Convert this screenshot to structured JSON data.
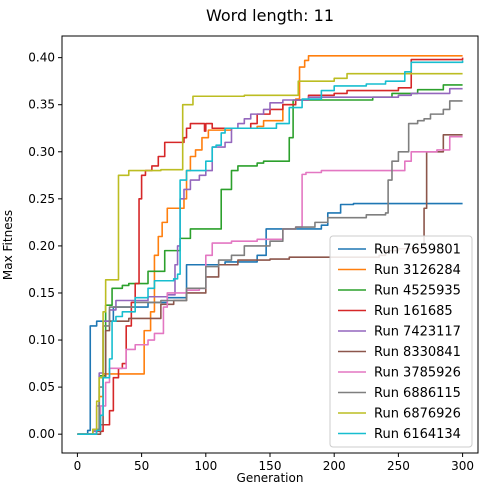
{
  "chart_data": {
    "type": "line",
    "title": "Word length: 11",
    "xlabel": "Generation",
    "ylabel": "Max Fitness",
    "xlim": [
      -12,
      312
    ],
    "ylim": [
      -0.02,
      0.423
    ],
    "xticks": [
      0,
      50,
      100,
      150,
      200,
      250,
      300
    ],
    "yticks": [
      0.0,
      0.05,
      0.1,
      0.15,
      0.2,
      0.25,
      0.3,
      0.35,
      0.4
    ],
    "grid": false,
    "legend_position": "lower-right",
    "series": [
      {
        "name": "Run 7659801",
        "color": "#1f77b4",
        "step": [
          [
            0,
            0
          ],
          [
            8,
            0.004
          ],
          [
            10,
            0.115
          ],
          [
            15,
            0.12
          ],
          [
            28,
            0.135
          ],
          [
            55,
            0.14
          ],
          [
            70,
            0.145
          ],
          [
            85,
            0.18
          ],
          [
            115,
            0.183
          ],
          [
            140,
            0.19
          ],
          [
            147,
            0.218
          ],
          [
            190,
            0.222
          ],
          [
            195,
            0.235
          ],
          [
            205,
            0.244
          ],
          [
            215,
            0.245
          ],
          [
            300,
            0.245
          ]
        ]
      },
      {
        "name": "Run 3126284",
        "color": "#ff7f0e",
        "step": [
          [
            0,
            0
          ],
          [
            12,
            0.005
          ],
          [
            17,
            0.04
          ],
          [
            20,
            0.064
          ],
          [
            50,
            0.064
          ],
          [
            52,
            0.11
          ],
          [
            57,
            0.13
          ],
          [
            60,
            0.19
          ],
          [
            63,
            0.21
          ],
          [
            66,
            0.225
          ],
          [
            70,
            0.24
          ],
          [
            83,
            0.25
          ],
          [
            85,
            0.28
          ],
          [
            88,
            0.295
          ],
          [
            92,
            0.302
          ],
          [
            97,
            0.315
          ],
          [
            102,
            0.323
          ],
          [
            120,
            0.325
          ],
          [
            140,
            0.327
          ],
          [
            145,
            0.333
          ],
          [
            160,
            0.35
          ],
          [
            170,
            0.356
          ],
          [
            173,
            0.39
          ],
          [
            177,
            0.397
          ],
          [
            180,
            0.402
          ],
          [
            250,
            0.402
          ],
          [
            300,
            0.402
          ]
        ]
      },
      {
        "name": "Run 4525935",
        "color": "#2ca02c",
        "step": [
          [
            0,
            0
          ],
          [
            15,
            0.005
          ],
          [
            17,
            0.062
          ],
          [
            22,
            0.137
          ],
          [
            27,
            0.155
          ],
          [
            35,
            0.158
          ],
          [
            40,
            0.16
          ],
          [
            55,
            0.173
          ],
          [
            68,
            0.195
          ],
          [
            80,
            0.208
          ],
          [
            88,
            0.218
          ],
          [
            110,
            0.218
          ],
          [
            112,
            0.26
          ],
          [
            120,
            0.28
          ],
          [
            125,
            0.285
          ],
          [
            140,
            0.288
          ],
          [
            145,
            0.29
          ],
          [
            163,
            0.29
          ],
          [
            165,
            0.315
          ],
          [
            168,
            0.355
          ],
          [
            230,
            0.358
          ],
          [
            245,
            0.362
          ],
          [
            265,
            0.366
          ],
          [
            285,
            0.371
          ],
          [
            300,
            0.371
          ]
        ]
      },
      {
        "name": "Run 161685",
        "color": "#d62728",
        "step": [
          [
            0,
            0
          ],
          [
            15,
            0.003
          ],
          [
            20,
            0.01
          ],
          [
            25,
            0.025
          ],
          [
            28,
            0.06
          ],
          [
            32,
            0.07
          ],
          [
            35,
            0.075
          ],
          [
            38,
            0.115
          ],
          [
            42,
            0.14
          ],
          [
            45,
            0.16
          ],
          [
            48,
            0.25
          ],
          [
            50,
            0.275
          ],
          [
            53,
            0.28
          ],
          [
            58,
            0.285
          ],
          [
            63,
            0.295
          ],
          [
            68,
            0.31
          ],
          [
            80,
            0.31
          ],
          [
            83,
            0.315
          ],
          [
            85,
            0.325
          ],
          [
            88,
            0.33
          ],
          [
            95,
            0.33
          ],
          [
            99,
            0.322
          ],
          [
            100,
            0.33
          ],
          [
            105,
            0.325
          ],
          [
            120,
            0.325
          ],
          [
            135,
            0.33
          ],
          [
            140,
            0.34
          ],
          [
            150,
            0.345
          ],
          [
            160,
            0.35
          ],
          [
            170,
            0.355
          ],
          [
            180,
            0.36
          ],
          [
            200,
            0.362
          ],
          [
            210,
            0.365
          ],
          [
            250,
            0.368
          ],
          [
            260,
            0.398
          ],
          [
            300,
            0.4
          ]
        ]
      },
      {
        "name": "Run 7423117",
        "color": "#9467bd",
        "step": [
          [
            0,
            0
          ],
          [
            12,
            0.003
          ],
          [
            15,
            0.03
          ],
          [
            17,
            0.065
          ],
          [
            20,
            0.12
          ],
          [
            25,
            0.132
          ],
          [
            30,
            0.142
          ],
          [
            40,
            0.142
          ],
          [
            55,
            0.146
          ],
          [
            70,
            0.148
          ],
          [
            76,
            0.18
          ],
          [
            78,
            0.2
          ],
          [
            80,
            0.25
          ],
          [
            83,
            0.26
          ],
          [
            88,
            0.27
          ],
          [
            95,
            0.275
          ],
          [
            100,
            0.28
          ],
          [
            105,
            0.305
          ],
          [
            115,
            0.31
          ],
          [
            120,
            0.325
          ],
          [
            125,
            0.33
          ],
          [
            130,
            0.335
          ],
          [
            135,
            0.34
          ],
          [
            145,
            0.345
          ],
          [
            150,
            0.352
          ],
          [
            160,
            0.355
          ],
          [
            180,
            0.358
          ],
          [
            205,
            0.358
          ],
          [
            215,
            0.358
          ],
          [
            250,
            0.36
          ],
          [
            260,
            0.362
          ],
          [
            290,
            0.367
          ],
          [
            300,
            0.367
          ]
        ]
      },
      {
        "name": "Run 8330841",
        "color": "#8c564b",
        "step": [
          [
            0,
            0
          ],
          [
            18,
            0.01
          ],
          [
            20,
            0.06
          ],
          [
            22,
            0.11
          ],
          [
            25,
            0.12
          ],
          [
            40,
            0.123
          ],
          [
            65,
            0.138
          ],
          [
            75,
            0.142
          ],
          [
            85,
            0.15
          ],
          [
            100,
            0.167
          ],
          [
            110,
            0.18
          ],
          [
            125,
            0.185
          ],
          [
            150,
            0.186
          ],
          [
            165,
            0.188
          ],
          [
            200,
            0.188
          ],
          [
            235,
            0.19
          ],
          [
            240,
            0.195
          ],
          [
            250,
            0.197
          ],
          [
            270,
            0.24
          ],
          [
            272,
            0.3
          ],
          [
            285,
            0.318
          ],
          [
            300,
            0.318
          ]
        ]
      },
      {
        "name": "Run 3785926",
        "color": "#e377c2",
        "step": [
          [
            0,
            0
          ],
          [
            15,
            0.005
          ],
          [
            18,
            0.03
          ],
          [
            22,
            0.055
          ],
          [
            25,
            0.07
          ],
          [
            35,
            0.07
          ],
          [
            38,
            0.09
          ],
          [
            45,
            0.095
          ],
          [
            55,
            0.1
          ],
          [
            60,
            0.107
          ],
          [
            67,
            0.135
          ],
          [
            70,
            0.15
          ],
          [
            85,
            0.153
          ],
          [
            95,
            0.155
          ],
          [
            100,
            0.19
          ],
          [
            105,
            0.203
          ],
          [
            120,
            0.205
          ],
          [
            140,
            0.207
          ],
          [
            160,
            0.218
          ],
          [
            170,
            0.22
          ],
          [
            175,
            0.276
          ],
          [
            178,
            0.278
          ],
          [
            190,
            0.28
          ],
          [
            240,
            0.28
          ],
          [
            255,
            0.29
          ],
          [
            260,
            0.3
          ],
          [
            280,
            0.302
          ],
          [
            290,
            0.316
          ],
          [
            300,
            0.316
          ]
        ]
      },
      {
        "name": "Run 6886115",
        "color": "#7f7f7f",
        "step": [
          [
            0,
            0
          ],
          [
            12,
            0.005
          ],
          [
            17,
            0.05
          ],
          [
            20,
            0.115
          ],
          [
            25,
            0.135
          ],
          [
            45,
            0.14
          ],
          [
            65,
            0.142
          ],
          [
            85,
            0.155
          ],
          [
            100,
            0.178
          ],
          [
            110,
            0.185
          ],
          [
            120,
            0.19
          ],
          [
            130,
            0.2
          ],
          [
            150,
            0.205
          ],
          [
            160,
            0.218
          ],
          [
            170,
            0.22
          ],
          [
            185,
            0.225
          ],
          [
            195,
            0.23
          ],
          [
            215,
            0.23
          ],
          [
            225,
            0.233
          ],
          [
            240,
            0.235
          ],
          [
            242,
            0.27
          ],
          [
            245,
            0.29
          ],
          [
            250,
            0.3
          ],
          [
            258,
            0.33
          ],
          [
            265,
            0.333
          ],
          [
            270,
            0.335
          ],
          [
            275,
            0.34
          ],
          [
            285,
            0.345
          ],
          [
            290,
            0.354
          ],
          [
            300,
            0.354
          ]
        ]
      },
      {
        "name": "Run 6876926",
        "color": "#bcbd22",
        "step": [
          [
            0,
            0
          ],
          [
            12,
            0.005
          ],
          [
            15,
            0.035
          ],
          [
            17,
            0.06
          ],
          [
            20,
            0.13
          ],
          [
            22,
            0.164
          ],
          [
            30,
            0.164
          ],
          [
            32,
            0.275
          ],
          [
            40,
            0.28
          ],
          [
            65,
            0.281
          ],
          [
            80,
            0.281
          ],
          [
            82,
            0.35
          ],
          [
            90,
            0.359
          ],
          [
            130,
            0.36
          ],
          [
            170,
            0.36
          ],
          [
            172,
            0.375
          ],
          [
            190,
            0.375
          ],
          [
            200,
            0.378
          ],
          [
            210,
            0.383
          ],
          [
            265,
            0.383
          ],
          [
            300,
            0.383
          ]
        ]
      },
      {
        "name": "Run 6164134",
        "color": "#17becf",
        "step": [
          [
            0,
            0
          ],
          [
            15,
            0.004
          ],
          [
            18,
            0.02
          ],
          [
            20,
            0.06
          ],
          [
            25,
            0.08
          ],
          [
            27,
            0.12
          ],
          [
            30,
            0.125
          ],
          [
            35,
            0.13
          ],
          [
            45,
            0.145
          ],
          [
            55,
            0.155
          ],
          [
            60,
            0.163
          ],
          [
            75,
            0.165
          ],
          [
            78,
            0.17
          ],
          [
            80,
            0.27
          ],
          [
            85,
            0.28
          ],
          [
            95,
            0.28
          ],
          [
            100,
            0.29
          ],
          [
            105,
            0.305
          ],
          [
            108,
            0.307
          ],
          [
            112,
            0.32
          ],
          [
            115,
            0.325
          ],
          [
            150,
            0.325
          ],
          [
            155,
            0.33
          ],
          [
            165,
            0.347
          ],
          [
            175,
            0.356
          ],
          [
            190,
            0.365
          ],
          [
            200,
            0.37
          ],
          [
            215,
            0.37
          ],
          [
            225,
            0.372
          ],
          [
            240,
            0.375
          ],
          [
            255,
            0.385
          ],
          [
            260,
            0.395
          ],
          [
            300,
            0.397
          ]
        ]
      }
    ]
  }
}
